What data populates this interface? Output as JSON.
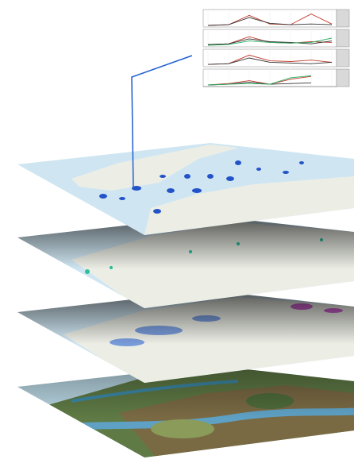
{
  "chart_data": {
    "type": "line",
    "ylim": [
      0,
      100
    ],
    "panels": [
      {
        "series": [
          {
            "color": "#c0392b",
            "values": [
              0,
              5,
              70,
              10,
              5,
              80,
              10
            ]
          },
          {
            "color": "#333333",
            "values": [
              0,
              5,
              55,
              15,
              5,
              10,
              5
            ]
          }
        ]
      },
      {
        "series": [
          {
            "color": "#c0392b",
            "values": [
              5,
              10,
              60,
              20,
              15,
              25,
              20
            ]
          },
          {
            "color": "#333333",
            "values": [
              5,
              10,
              45,
              25,
              20,
              10,
              30
            ]
          },
          {
            "color": "#27ae60",
            "values": [
              0,
              5,
              30,
              20,
              15,
              20,
              50
            ]
          }
        ]
      },
      {
        "series": [
          {
            "color": "#c0392b",
            "values": [
              5,
              10,
              70,
              30,
              25,
              35,
              20
            ]
          },
          {
            "color": "#333333",
            "values": [
              5,
              10,
              50,
              20,
              15,
              10,
              20
            ]
          }
        ]
      },
      {
        "series": [
          {
            "color": "#c0392b",
            "values": [
              0,
              10,
              30,
              5,
              40,
              60,
              null
            ]
          },
          {
            "color": "#333333",
            "values": [
              0,
              5,
              20,
              5,
              10,
              15,
              null
            ]
          },
          {
            "color": "#27ae60",
            "values": [
              0,
              5,
              10,
              5,
              50,
              65,
              null
            ]
          }
        ]
      }
    ]
  }
}
